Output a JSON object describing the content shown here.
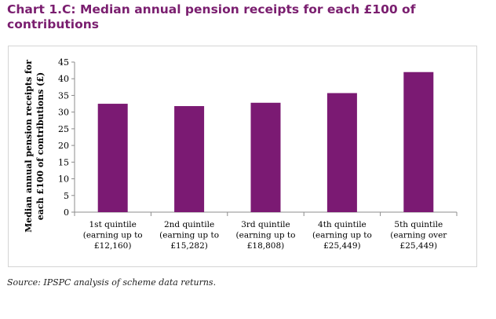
{
  "header": {
    "title_line1": "Chart 1.C:  Median annual pension receipts for each £100 of",
    "title_line2": "contributions"
  },
  "footer": {
    "source": "Source: IPSPC analysis of scheme data returns."
  },
  "colors": {
    "title": "#7a1e6f",
    "bar": "#7b1a73"
  },
  "chart_data": {
    "type": "bar",
    "ylabel_line1": "Median annual pension receipts for",
    "ylabel_line2": "each £100 of contributions (£)",
    "xlabel": "",
    "ylim": [
      0,
      45
    ],
    "yticks": [
      0,
      5,
      10,
      15,
      20,
      25,
      30,
      35,
      40,
      45
    ],
    "grid": false,
    "categories": [
      [
        "1st quintile",
        "(earning up to",
        "£12,160)"
      ],
      [
        "2nd quintile",
        "(earning up to",
        "£15,282)"
      ],
      [
        "3rd quintile",
        "(earning up to",
        "£18,808)"
      ],
      [
        "4th quintile",
        "(earning up to",
        "£25,449)"
      ],
      [
        "5th quintile",
        "(earning over",
        "£25,449)"
      ]
    ],
    "values": [
      32.5,
      31.8,
      32.8,
      35.7,
      42.0
    ]
  }
}
